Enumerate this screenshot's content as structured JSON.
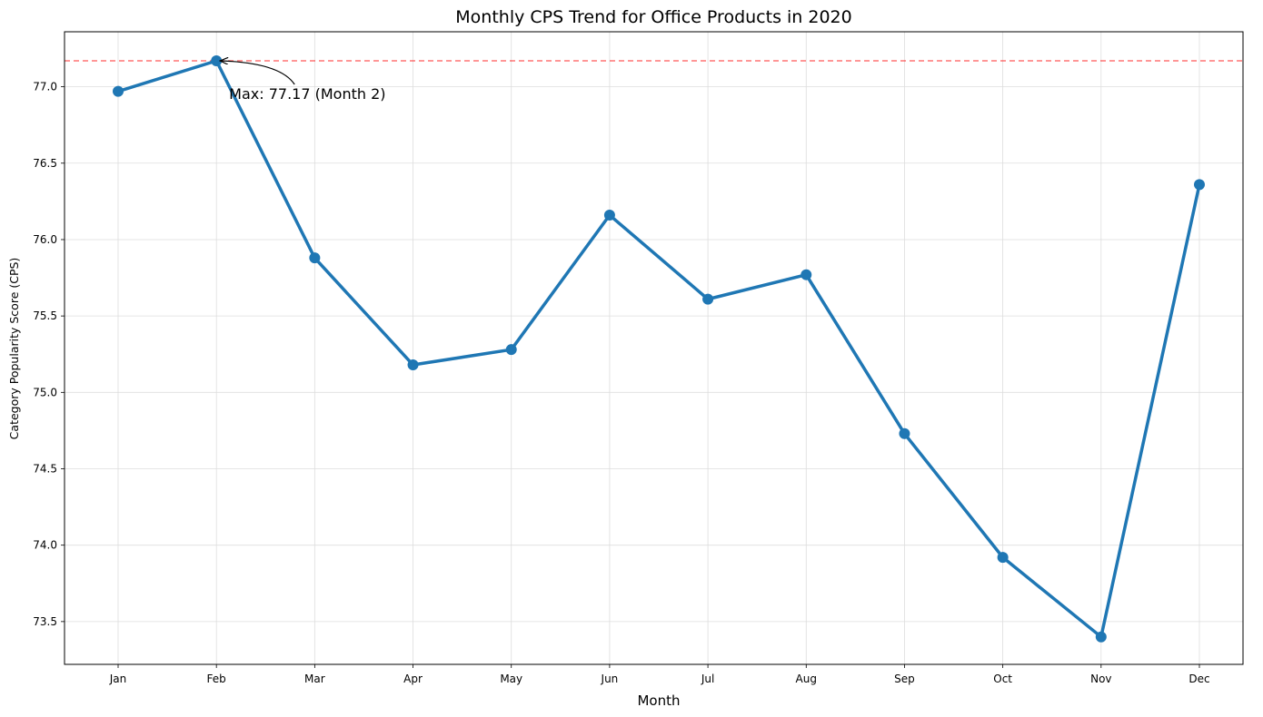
{
  "chart_data": {
    "type": "line",
    "title": "Monthly CPS Trend for Office Products in 2020",
    "xlabel": "Month",
    "ylabel": "Category Popularity Score (CPS)",
    "categories": [
      "Jan",
      "Feb",
      "Mar",
      "Apr",
      "May",
      "Jun",
      "Jul",
      "Aug",
      "Sep",
      "Oct",
      "Nov",
      "Dec"
    ],
    "series": [
      {
        "values": [
          76.97,
          77.17,
          75.88,
          75.18,
          75.28,
          76.16,
          75.61,
          75.77,
          74.73,
          73.92,
          73.4,
          76.36
        ],
        "color": "#1f77b4"
      }
    ],
    "ylim": [
      73.22,
      77.36
    ],
    "yticks": [
      73.5,
      74.0,
      74.5,
      75.0,
      75.5,
      76.0,
      76.5,
      77.0
    ],
    "ytick_labels": [
      "73.5",
      "74.0",
      "74.5",
      "75.0",
      "75.5",
      "76.0",
      "76.5",
      "77.0"
    ],
    "grid": true,
    "reference_line": {
      "value": 77.17,
      "color": "#ff0000",
      "style": "dashed"
    },
    "annotation": {
      "text": "Max: 77.17 (Month 2)",
      "category": "Feb",
      "value": 77.17
    }
  }
}
